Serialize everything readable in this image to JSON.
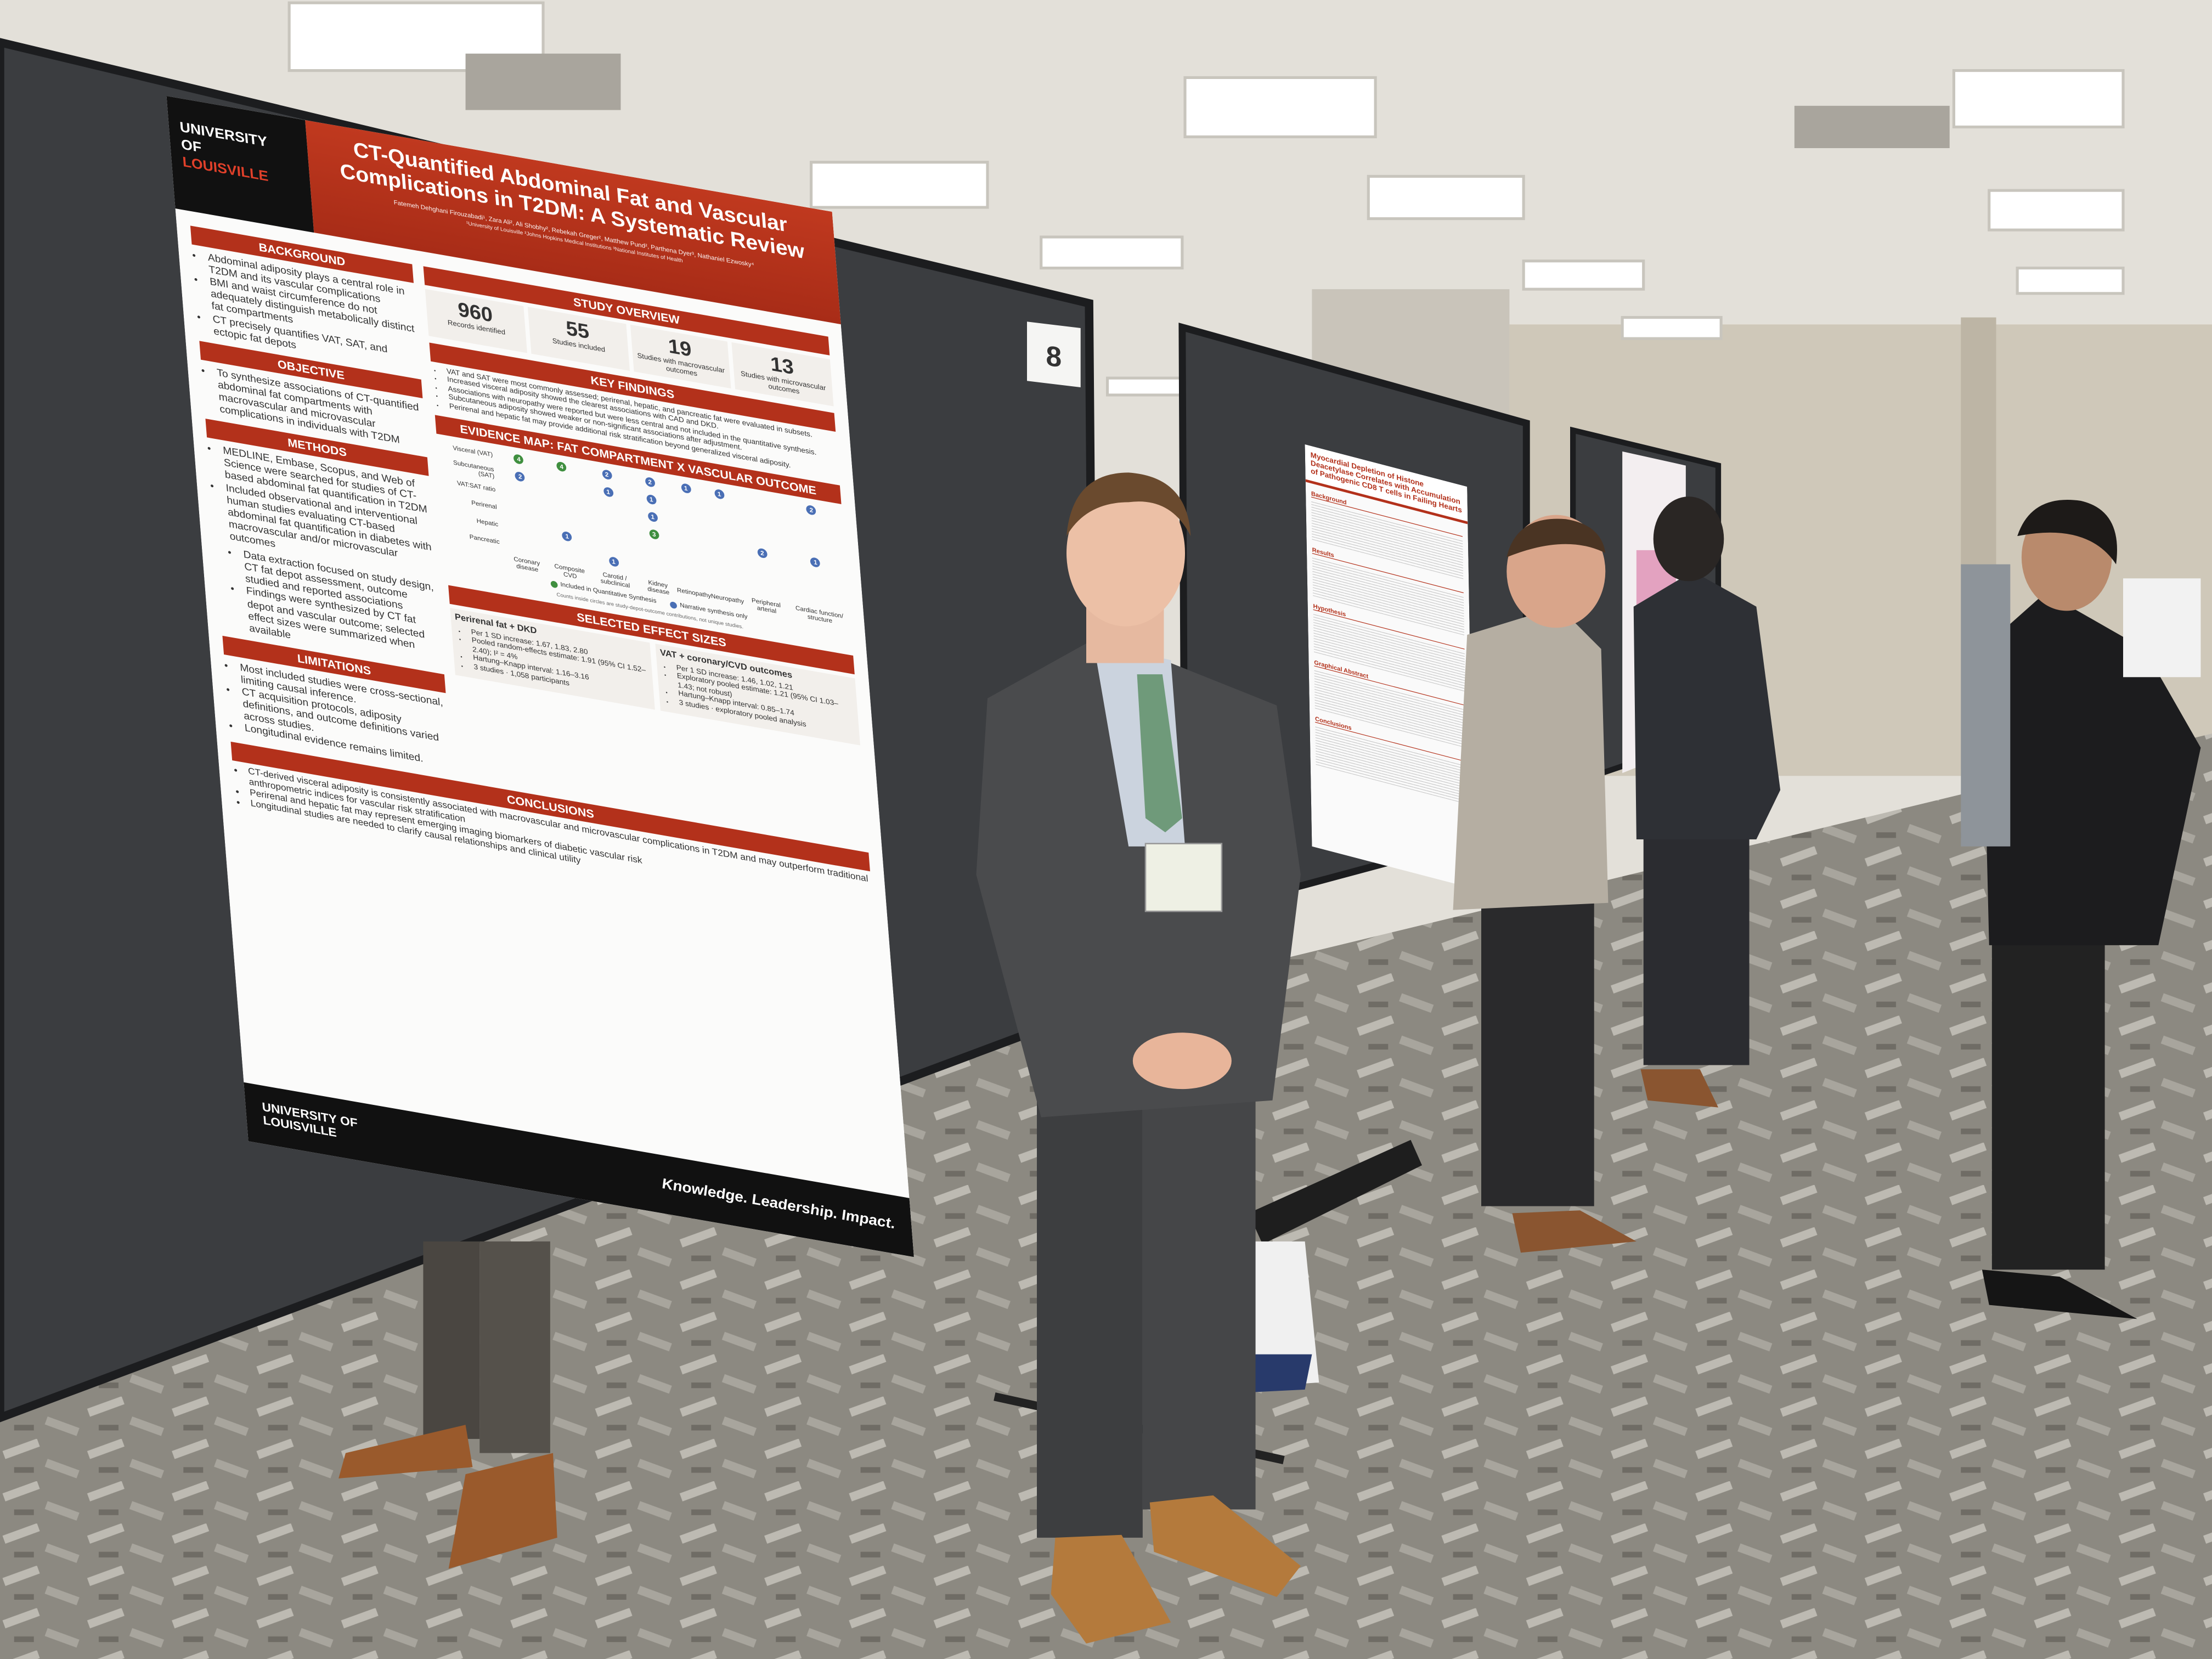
{
  "poster": {
    "logo": [
      "UNIVERSITY",
      "OF",
      "LOUISVILLE"
    ],
    "title": "CT-Quantified Abdominal Fat and Vascular Complications in T2DM: A Systematic Review",
    "authors": "Fatemeh Dehghani Firouzabadi¹, Zara Ali², Ali Shobhy², Rebekah Greger², Matthew Pund², Parthena Dyer³, Nathaniel Ezwosky⁴",
    "affiliations": "¹University of Louisville  ²Johns Hopkins Medical Institutions  ³National Institutes of Health",
    "left_sections": [
      {
        "heading": "BACKGROUND",
        "bullets": [
          "Abdominal adiposity plays a central role in T2DM and its vascular complications",
          "BMI and waist circumference do not adequately distinguish metabolically distinct fat compartments",
          "CT precisely quantifies VAT, SAT, and ectopic fat depots"
        ]
      },
      {
        "heading": "OBJECTIVE",
        "bullets": [
          "To synthesize associations of CT-quantified abdominal fat compartments with macrovascular and microvascular complications in individuals with T2DM"
        ]
      },
      {
        "heading": "METHODS",
        "bullets": [
          "MEDLINE, Embase, Scopus, and Web of Science were searched for studies of CT-based abdominal fat quantification in T2DM",
          "Included observational and interventional human studies evaluating CT-based abdominal fat quantification in diabetes with macrovascular and/or microvascular outcomes"
        ],
        "sub_bullets": [
          "Data extraction focused on study design, CT fat depot assessment, outcome studied and reported associations",
          "Findings were synthesized by CT fat depot and vascular outcome; selected effect sizes were summarized when available"
        ]
      },
      {
        "heading": "LIMITATIONS",
        "bullets": [
          "Most included studies were cross-sectional, limiting causal inference.",
          "CT acquisition protocols, adiposity definitions, and outcome definitions varied across studies.",
          "Longitudinal evidence remains limited."
        ]
      }
    ],
    "overview": {
      "heading": "STUDY OVERVIEW",
      "stats": [
        {
          "value": 960,
          "label": "Records identified"
        },
        {
          "value": 55,
          "label": "Studies included"
        },
        {
          "value": 19,
          "label": "Studies with macrovascular outcomes"
        },
        {
          "value": 13,
          "label": "Studies with microvascular outcomes"
        }
      ]
    },
    "key_findings": {
      "heading": "KEY FINDINGS",
      "bullets": [
        "VAT and SAT were most commonly assessed; perirenal, hepatic, and pancreatic fat were evaluated in subsets.",
        "Increased visceral adiposity showed the clearest associations with CAD and DKD.",
        "Associations with neuropathy were reported but were less central and not included in the quantitative synthesis.",
        "Subcutaneous adiposity showed weaker or non-significant associations after adjustment.",
        "Perirenal and hepatic fat may provide additional risk stratification beyond generalized visceral adiposity."
      ]
    },
    "evidence_map": {
      "heading": "EVIDENCE MAP: FAT COMPARTMENT X VASCULAR OUTCOME",
      "rows": [
        "Visceral (VAT)",
        "Subcutaneous (SAT)",
        "VAT:SAT ratio",
        "Perirenal",
        "Hepatic",
        "Pancreatic"
      ],
      "columns": [
        "Coronary disease",
        "Composite CVD",
        "Carotid / subclinical",
        "Kidney disease",
        "Retinopathy",
        "Neuropathy",
        "Peripheral arterial",
        "Cardiac function/ structure"
      ],
      "cells": [
        [
          {
            "count": 4,
            "color": "#3f8f3f"
          },
          {
            "count": 4,
            "color": "#3f8f3f"
          },
          {
            "count": 2,
            "color": "#4a6fb5"
          },
          {
            "count": 2,
            "color": "#4a6fb5"
          },
          {
            "count": 1,
            "color": "#4a6fb5"
          },
          {
            "count": 1,
            "color": "#4a6fb5"
          },
          null,
          {
            "count": 2,
            "color": "#4a6fb5"
          }
        ],
        [
          {
            "count": 2,
            "color": "#4a6fb5"
          },
          null,
          {
            "count": 1,
            "color": "#4a6fb5"
          },
          {
            "count": 1,
            "color": "#4a6fb5"
          },
          null,
          null,
          null,
          null
        ],
        [
          null,
          null,
          null,
          {
            "count": 1,
            "color": "#4a6fb5"
          },
          null,
          null,
          null,
          null
        ],
        [
          null,
          null,
          null,
          {
            "count": 3,
            "color": "#3f8f3f"
          },
          null,
          null,
          {
            "count": 2,
            "color": "#4a6fb5"
          },
          {
            "count": 1,
            "color": "#4a6fb5"
          }
        ],
        [
          null,
          {
            "count": 1,
            "color": "#4a6fb5"
          },
          null,
          null,
          null,
          null,
          null,
          null
        ],
        [
          null,
          null,
          {
            "count": 1,
            "color": "#4a6fb5"
          },
          null,
          null,
          null,
          null,
          null
        ]
      ],
      "legend": [
        {
          "label": "Included in Quantitative Synthesis",
          "color": "#3f8f3f"
        },
        {
          "label": "Narrative synthesis only",
          "color": "#4a6fb5"
        }
      ],
      "note": "Counts inside circles are study-depot-outcome contributions, not unique studies."
    },
    "effect_sizes": {
      "heading": "SELECTED EFFECT SIZES",
      "boxes": [
        {
          "subtitle": "Perirenal fat + DKD",
          "bullets": [
            "Per 1 SD increase: 1.67, 1.83, 2.80",
            "Pooled random-effects estimate: 1.91 (95% CI 1.52–2.40); I² = 4%",
            "Hartung–Knapp interval: 1.16–3.16",
            "3 studies · 1,058 participants"
          ]
        },
        {
          "subtitle": "VAT + coronary/CVD outcomes",
          "bullets": [
            "Per 1 SD increase: 1.46, 1.02, 1.21",
            "Exploratory pooled estimate: 1.21 (95% CI 1.03–1.43; not robust)",
            "Hartung–Knapp interval: 0.85–1.74",
            "3 studies · exploratory pooled analysis"
          ]
        }
      ]
    },
    "conclusions": {
      "heading": "CONCLUSIONS",
      "bullets": [
        "CT-derived visceral adiposity is consistently associated with macrovascular and microvascular complications in T2DM and may outperform traditional anthropometric indices for vascular risk stratification",
        "Perirenal and hepatic fat may represent emerging imaging biomarkers of diabetic vascular risk",
        "Longitudinal studies are needed to clarify causal relationships and clinical utility"
      ]
    },
    "footer_tagline": "Knowledge. Leadership. Impact.",
    "footer_logo": [
      "UNIVERSITY OF",
      "LOUISVILLE"
    ]
  },
  "board_number": "8",
  "second_poster": {
    "title": "Myocardial Depletion of Histone Deacetylase Correlates with Accumulation of Pathogenic CD8 T cells in Failing Hearts",
    "sections": [
      "Background",
      "Results",
      "Hypothesis",
      "Graphical Abstract",
      "Conclusions"
    ]
  }
}
